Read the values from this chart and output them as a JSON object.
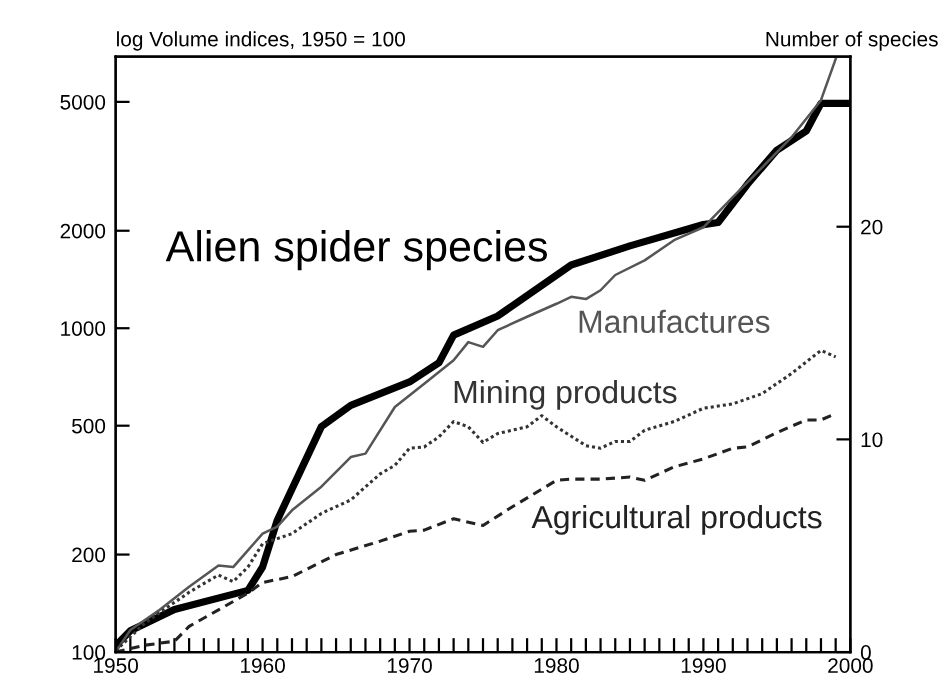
{
  "chart_data": {
    "type": "line",
    "ylabel": "log Volume indices, 1950 = 100",
    "y2label": "Number of species",
    "log": "y",
    "grid": false,
    "legend": false,
    "marker": "none",
    "xlim": [
      1950,
      2000
    ],
    "xticks": [
      1950,
      {
        "value": 1951,
        "label": null
      },
      {
        "value": 1952,
        "label": null
      },
      {
        "value": 1953,
        "label": null
      },
      {
        "value": 1954,
        "label": null
      },
      {
        "value": 1955,
        "label": null
      },
      {
        "value": 1956,
        "label": null
      },
      {
        "value": 1957,
        "label": null
      },
      {
        "value": 1958,
        "label": null
      },
      {
        "value": 1959,
        "label": null
      },
      1960,
      {
        "value": 1961,
        "label": null
      },
      {
        "value": 1962,
        "label": null
      },
      {
        "value": 1963,
        "label": null
      },
      {
        "value": 1964,
        "label": null
      },
      {
        "value": 1965,
        "label": null
      },
      {
        "value": 1966,
        "label": null
      },
      {
        "value": 1967,
        "label": null
      },
      {
        "value": 1968,
        "label": null
      },
      {
        "value": 1969,
        "label": null
      },
      1970,
      {
        "value": 1971,
        "label": null
      },
      {
        "value": 1972,
        "label": null
      },
      {
        "value": 1973,
        "label": null
      },
      {
        "value": 1974,
        "label": null
      },
      {
        "value": 1975,
        "label": null
      },
      {
        "value": 1976,
        "label": null
      },
      {
        "value": 1977,
        "label": null
      },
      {
        "value": 1978,
        "label": null
      },
      {
        "value": 1979,
        "label": null
      },
      1980,
      {
        "value": 1981,
        "label": null
      },
      {
        "value": 1982,
        "label": null
      },
      {
        "value": 1983,
        "label": null
      },
      {
        "value": 1984,
        "label": null
      },
      {
        "value": 1985,
        "label": null
      },
      {
        "value": 1986,
        "label": null
      },
      {
        "value": 1987,
        "label": null
      },
      {
        "value": 1988,
        "label": null
      },
      {
        "value": 1989,
        "label": null
      },
      1990,
      {
        "value": 1991,
        "label": null
      },
      {
        "value": 1992,
        "label": null
      },
      {
        "value": 1993,
        "label": null
      },
      {
        "value": 1994,
        "label": null
      },
      {
        "value": 1995,
        "label": null
      },
      {
        "value": 1996,
        "label": null
      },
      {
        "value": 1997,
        "label": null
      },
      {
        "value": 1998,
        "label": null
      },
      {
        "value": 1999,
        "label": null
      },
      2000
    ],
    "ylim": [
      100,
      6900
    ],
    "yticks": [
      100,
      200,
      500,
      1000,
      2000,
      5000
    ],
    "y2lim": [
      0,
      28
    ],
    "y2ticks": [
      0,
      10,
      20
    ],
    "series": [
      {
        "name": "Alien spider species",
        "axis": "y2",
        "color": "#000000",
        "line_style": "solid",
        "x": [
          1950,
          1951,
          1954,
          1959,
          1960,
          1961,
          1964,
          1966,
          1970,
          1972,
          1973,
          1976,
          1981,
          1985,
          1990,
          1991,
          1993,
          1995,
          1997,
          1998,
          2000
        ],
        "values": [
          0.3,
          1.0,
          2.0,
          2.9,
          4.0,
          6.2,
          10.6,
          11.6,
          12.7,
          13.6,
          14.9,
          15.8,
          18.2,
          19.1,
          20.1,
          20.2,
          22.0,
          23.6,
          24.5,
          25.8,
          25.8
        ]
      },
      {
        "name": "Manufactures",
        "color": "#555555",
        "line_style": "solid",
        "x": [
          1950,
          1951,
          1953,
          1955,
          1957,
          1958,
          1959,
          1960,
          1961,
          1962,
          1964,
          1966,
          1967,
          1969,
          1971,
          1973,
          1974,
          1975,
          1976,
          1978,
          1980,
          1981,
          1982,
          1983,
          1984,
          1986,
          1988,
          1990,
          1992,
          1994,
          1996,
          1998,
          1999
        ],
        "values": [
          100,
          117,
          135,
          159,
          185,
          183,
          206,
          232,
          244,
          274,
          324,
          400,
          410,
          571,
          674,
          796,
          906,
          876,
          986,
          1085,
          1190,
          1250,
          1230,
          1310,
          1460,
          1620,
          1870,
          2050,
          2540,
          3140,
          3890,
          5060,
          6780
        ]
      },
      {
        "name": "Mining products",
        "color": "#333333",
        "line_style": "dotted",
        "x": [
          1950,
          1952,
          1955,
          1957,
          1958,
          1959,
          1960,
          1961,
          1962,
          1964,
          1966,
          1968,
          1969,
          1970,
          1971,
          1972,
          1973,
          1974,
          1975,
          1976,
          1978,
          1979,
          1980,
          1982,
          1983,
          1984,
          1985,
          1986,
          1988,
          1990,
          1992,
          1994,
          1996,
          1998,
          1999
        ],
        "values": [
          101,
          123,
          153,
          173,
          165,
          183,
          216,
          224,
          232,
          268,
          295,
          355,
          377,
          426,
          430,
          462,
          515,
          496,
          444,
          473,
          496,
          537,
          496,
          434,
          426,
          447,
          447,
          484,
          515,
          566,
          584,
          628,
          725,
          854,
          816
        ]
      },
      {
        "name": "Agricultural products",
        "color": "#222222",
        "line_style": "dashed",
        "x": [
          1950,
          1952,
          1954,
          1955,
          1957,
          1959,
          1960,
          1962,
          1965,
          1968,
          1970,
          1971,
          1973,
          1975,
          1977,
          1980,
          1981,
          1983,
          1985,
          1986,
          1988,
          1990,
          1992,
          1993,
          1995,
          1997,
          1998,
          1999
        ],
        "values": [
          100,
          105,
          108,
          120,
          135,
          152,
          164,
          171,
          200,
          220,
          236,
          238,
          258,
          246,
          281,
          339,
          342,
          342,
          347,
          339,
          373,
          395,
          426,
          430,
          476,
          521,
          521,
          545
        ]
      }
    ]
  }
}
